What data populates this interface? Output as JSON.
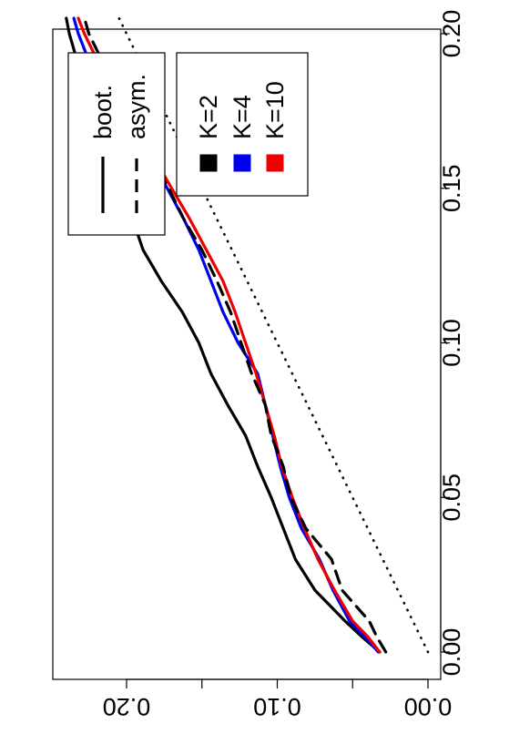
{
  "chart_data": {
    "type": "line",
    "orientation": "rotated-90-clockwise",
    "xlim": [
      0.0,
      0.205
    ],
    "ylim": [
      -0.005,
      0.245
    ],
    "xticks": [
      0.0,
      0.05,
      0.1,
      0.15,
      0.2
    ],
    "xtick_labels": [
      "0.00",
      "0.05",
      "0.10",
      "0.15",
      "0.20"
    ],
    "yticks": [
      0.0,
      0.05,
      0.1,
      0.15,
      0.2
    ],
    "ytick_labels": [
      "0.00",
      "",
      "0.10",
      "",
      "0.20"
    ],
    "reference_line": {
      "style": "dotted",
      "x": [
        0.0,
        0.205
      ],
      "y": [
        0.0,
        0.205
      ]
    },
    "series": [
      {
        "name": "K=2",
        "color": "#000000",
        "style": "solid",
        "x": [
          0.0,
          0.005,
          0.01,
          0.02,
          0.03,
          0.04,
          0.05,
          0.06,
          0.07,
          0.08,
          0.09,
          0.1,
          0.11,
          0.12,
          0.13,
          0.14,
          0.15,
          0.16,
          0.17,
          0.18,
          0.19,
          0.2,
          0.205
        ],
        "y": [
          0.032,
          0.044,
          0.055,
          0.075,
          0.088,
          0.096,
          0.104,
          0.113,
          0.121,
          0.133,
          0.144,
          0.152,
          0.163,
          0.177,
          0.189,
          0.196,
          0.204,
          0.213,
          0.218,
          0.226,
          0.232,
          0.238,
          0.24
        ]
      },
      {
        "name": "K=4",
        "color": "#0000ee",
        "style": "solid",
        "x": [
          0.0,
          0.005,
          0.01,
          0.02,
          0.03,
          0.04,
          0.05,
          0.06,
          0.07,
          0.08,
          0.09,
          0.1,
          0.11,
          0.12,
          0.13,
          0.14,
          0.15,
          0.16,
          0.17,
          0.18,
          0.19,
          0.2,
          0.205
        ],
        "y": [
          0.033,
          0.042,
          0.052,
          0.063,
          0.072,
          0.084,
          0.092,
          0.098,
          0.103,
          0.108,
          0.113,
          0.126,
          0.136,
          0.144,
          0.152,
          0.162,
          0.173,
          0.185,
          0.196,
          0.212,
          0.224,
          0.232,
          0.235
        ]
      },
      {
        "name": "K=10",
        "color": "#ee0000",
        "style": "solid",
        "x": [
          0.0,
          0.005,
          0.01,
          0.02,
          0.03,
          0.04,
          0.05,
          0.06,
          0.07,
          0.08,
          0.09,
          0.1,
          0.11,
          0.12,
          0.13,
          0.14,
          0.15,
          0.16,
          0.17,
          0.18,
          0.19,
          0.2,
          0.205
        ],
        "y": [
          0.032,
          0.04,
          0.05,
          0.062,
          0.073,
          0.082,
          0.09,
          0.097,
          0.102,
          0.108,
          0.114,
          0.121,
          0.128,
          0.136,
          0.147,
          0.158,
          0.17,
          0.182,
          0.194,
          0.206,
          0.218,
          0.228,
          0.232
        ]
      },
      {
        "name": "asym.",
        "color": "#000000",
        "style": "dashed",
        "x": [
          0.0,
          0.005,
          0.01,
          0.02,
          0.03,
          0.04,
          0.05,
          0.06,
          0.07,
          0.08,
          0.09,
          0.1,
          0.11,
          0.12,
          0.13,
          0.14,
          0.15,
          0.16,
          0.17,
          0.18,
          0.19,
          0.2,
          0.205
        ],
        "y": [
          0.028,
          0.034,
          0.039,
          0.057,
          0.064,
          0.081,
          0.091,
          0.096,
          0.104,
          0.108,
          0.117,
          0.124,
          0.131,
          0.14,
          0.15,
          0.162,
          0.172,
          0.184,
          0.195,
          0.208,
          0.215,
          0.225,
          0.228
        ]
      }
    ],
    "legends": [
      {
        "position": "top-left",
        "entries": [
          {
            "label": "boot.",
            "style": "solid",
            "color": "#000000"
          },
          {
            "label": "asym.",
            "style": "dashed",
            "color": "#000000"
          }
        ]
      },
      {
        "position": "top-center",
        "entries": [
          {
            "label": "K=2",
            "style": "square",
            "color": "#000000"
          },
          {
            "label": "K=4",
            "style": "square",
            "color": "#0000ee"
          },
          {
            "label": "K=10",
            "style": "square",
            "color": "#ee0000"
          }
        ]
      }
    ],
    "grid": false
  }
}
